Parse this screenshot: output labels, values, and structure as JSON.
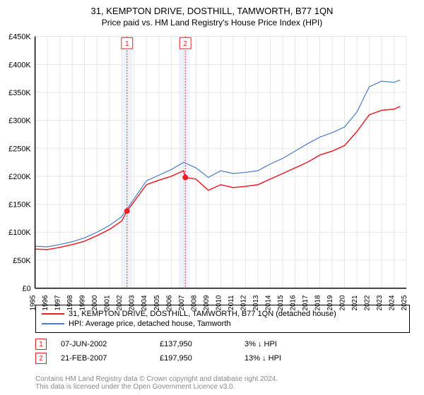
{
  "title": "31, KEMPTON DRIVE, DOSTHILL, TAMWORTH, B77 1QN",
  "subtitle": "Price paid vs. HM Land Registry's House Price Index (HPI)",
  "chart": {
    "type": "line",
    "background_color": "#ffffff",
    "grid_color": "#e6e6e6",
    "axis_color": "#000000",
    "y": {
      "min": 0,
      "max": 450000,
      "step": 50000,
      "labels": [
        "£0",
        "£50K",
        "£100K",
        "£150K",
        "£200K",
        "£250K",
        "£300K",
        "£350K",
        "£400K",
        "£450K"
      ]
    },
    "x": {
      "min": 1995,
      "max": 2025,
      "step": 1,
      "labels": [
        "1995",
        "1996",
        "1997",
        "1998",
        "1999",
        "2000",
        "2001",
        "2002",
        "2003",
        "2004",
        "2005",
        "2006",
        "2007",
        "2008",
        "2009",
        "2010",
        "2011",
        "2012",
        "2013",
        "2014",
        "2015",
        "2016",
        "2017",
        "2018",
        "2019",
        "2020",
        "2021",
        "2022",
        "2023",
        "2024",
        "2025"
      ]
    },
    "shade_bands": [
      {
        "from": 2002.0,
        "to": 2002.85,
        "color": "#eef3fa"
      },
      {
        "from": 2006.6,
        "to": 2007.5,
        "color": "#eef3fa"
      }
    ],
    "marker_lines": [
      {
        "x": 2002.43,
        "color": "#ef1c24",
        "label": "1",
        "label_y": 438000
      },
      {
        "x": 2007.14,
        "color": "#ef1c24",
        "label": "2",
        "label_y": 438000
      }
    ],
    "series": [
      {
        "name": "property",
        "color": "#ef1c24",
        "width": 1.5,
        "points": [
          [
            1995,
            70000
          ],
          [
            1996,
            69000
          ],
          [
            1997,
            73000
          ],
          [
            1998,
            78000
          ],
          [
            1999,
            84000
          ],
          [
            2000,
            94000
          ],
          [
            2001,
            105000
          ],
          [
            2002,
            120000
          ],
          [
            2002.43,
            137950
          ],
          [
            2003,
            155000
          ],
          [
            2004,
            185000
          ],
          [
            2005,
            193000
          ],
          [
            2006,
            200000
          ],
          [
            2007,
            210000
          ],
          [
            2007.14,
            197950
          ],
          [
            2008,
            195000
          ],
          [
            2009,
            175000
          ],
          [
            2010,
            185000
          ],
          [
            2011,
            180000
          ],
          [
            2012,
            182000
          ],
          [
            2013,
            185000
          ],
          [
            2014,
            195000
          ],
          [
            2015,
            205000
          ],
          [
            2016,
            215000
          ],
          [
            2017,
            225000
          ],
          [
            2018,
            238000
          ],
          [
            2019,
            245000
          ],
          [
            2020,
            255000
          ],
          [
            2021,
            280000
          ],
          [
            2022,
            310000
          ],
          [
            2023,
            318000
          ],
          [
            2024,
            320000
          ],
          [
            2024.5,
            325000
          ]
        ]
      },
      {
        "name": "hpi",
        "color": "#4a7bc8",
        "width": 1.2,
        "points": [
          [
            1995,
            75000
          ],
          [
            1996,
            74000
          ],
          [
            1997,
            78000
          ],
          [
            1998,
            83000
          ],
          [
            1999,
            90000
          ],
          [
            2000,
            100000
          ],
          [
            2001,
            112000
          ],
          [
            2002,
            128000
          ],
          [
            2003,
            160000
          ],
          [
            2004,
            192000
          ],
          [
            2005,
            202000
          ],
          [
            2006,
            212000
          ],
          [
            2007,
            225000
          ],
          [
            2008,
            215000
          ],
          [
            2009,
            198000
          ],
          [
            2010,
            210000
          ],
          [
            2011,
            205000
          ],
          [
            2012,
            207000
          ],
          [
            2013,
            210000
          ],
          [
            2014,
            222000
          ],
          [
            2015,
            232000
          ],
          [
            2016,
            245000
          ],
          [
            2017,
            258000
          ],
          [
            2018,
            270000
          ],
          [
            2019,
            278000
          ],
          [
            2020,
            288000
          ],
          [
            2021,
            315000
          ],
          [
            2022,
            360000
          ],
          [
            2023,
            370000
          ],
          [
            2024,
            368000
          ],
          [
            2024.5,
            372000
          ]
        ]
      }
    ],
    "sale_markers": [
      {
        "x": 2002.43,
        "y": 137950,
        "color": "#ef1c24"
      },
      {
        "x": 2007.14,
        "y": 197950,
        "color": "#ef1c24"
      }
    ]
  },
  "legend": {
    "items": [
      {
        "color": "#ef1c24",
        "label": "31, KEMPTON DRIVE, DOSTHILL, TAMWORTH, B77 1QN (detached house)"
      },
      {
        "color": "#4a7bc8",
        "label": "HPI: Average price, detached house, Tamworth"
      }
    ]
  },
  "sales": [
    {
      "num": "1",
      "color": "#ef1c24",
      "date": "07-JUN-2002",
      "price": "£137,950",
      "delta": "3% ↓ HPI"
    },
    {
      "num": "2",
      "color": "#ef1c24",
      "date": "21-FEB-2007",
      "price": "£197,950",
      "delta": "13% ↓ HPI"
    }
  ],
  "footer1": "Contains HM Land Registry data © Crown copyright and database right 2024.",
  "footer2": "This data is licensed under the Open Government Licence v3.0.",
  "label_fontsize": 11,
  "title_fontsize": 13
}
